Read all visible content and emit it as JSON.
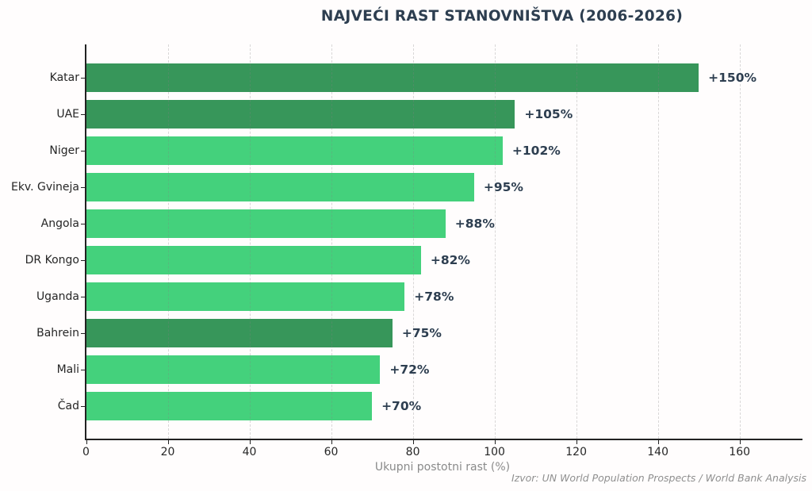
{
  "chart_data": {
    "type": "bar",
    "orientation": "horizontal",
    "title": "NAJVEĆI RAST STANOVNIŠTVA (2006-2026)",
    "xlabel": "Ukupni postotni rast (%)",
    "source_note": "Izvor: UN World Population Prospects / World Bank Analysis",
    "categories": [
      "Katar",
      "UAE",
      "Niger",
      "Ekv. Gvineja",
      "Angola",
      "DR Kongo",
      "Uganda",
      "Bahrein",
      "Mali",
      "Čad"
    ],
    "values": [
      150,
      105,
      102,
      95,
      88,
      82,
      78,
      75,
      72,
      70
    ],
    "value_labels": [
      "+150%",
      "+105%",
      "+102%",
      "+95%",
      "+88%",
      "+82%",
      "+78%",
      "+75%",
      "+72%",
      "+70%"
    ],
    "highlighted_categories": [
      "Katar",
      "UAE",
      "Bahrein"
    ],
    "xticks": [
      0,
      20,
      40,
      60,
      80,
      100,
      120,
      140,
      160
    ],
    "xlim": [
      0,
      175.4
    ],
    "grid": "vertical-dashed",
    "legend": "none",
    "colors": {
      "highlight_bar": "#37965a",
      "default_bar": "#44d17c",
      "title_text": "#2d3e50",
      "value_label_text": "#2d3e50",
      "axis_text": "#262626",
      "muted_text": "#8a8a8a",
      "source_text": "#8f8f8f",
      "axis_line": "#222222",
      "background": "#fffdfd"
    }
  }
}
